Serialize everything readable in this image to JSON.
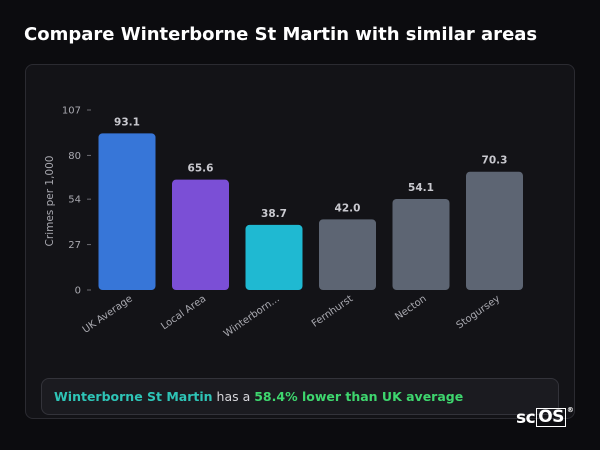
{
  "page": {
    "title": "Compare Winterborne St Martin with similar areas"
  },
  "chart_data": {
    "type": "bar",
    "title": "",
    "xlabel": "",
    "ylabel": "Crimes per 1,000",
    "ylim": [
      0,
      107
    ],
    "yticks": [
      0,
      27,
      54,
      80,
      107
    ],
    "grid": false,
    "categories": [
      "UK Average",
      "Local Area",
      "Winterborn...",
      "Fernhurst",
      "Necton",
      "Stogursey"
    ],
    "values": [
      93.1,
      65.6,
      38.7,
      42.0,
      54.1,
      70.3
    ],
    "value_labels": [
      "93.1",
      "65.6",
      "38.7",
      "42.0",
      "54.1",
      "70.3"
    ],
    "bar_colors": [
      "#3776d8",
      "#7b4fd6",
      "#1fb9d2",
      "#5d6573",
      "#5d6573",
      "#5d6573"
    ]
  },
  "summary": {
    "area_name": "Winterborne St Martin",
    "middle_text": " has a ",
    "comparison": "58.4% lower than UK average"
  },
  "logo": {
    "part1": "sc",
    "part2": "OS",
    "mark": "®"
  }
}
